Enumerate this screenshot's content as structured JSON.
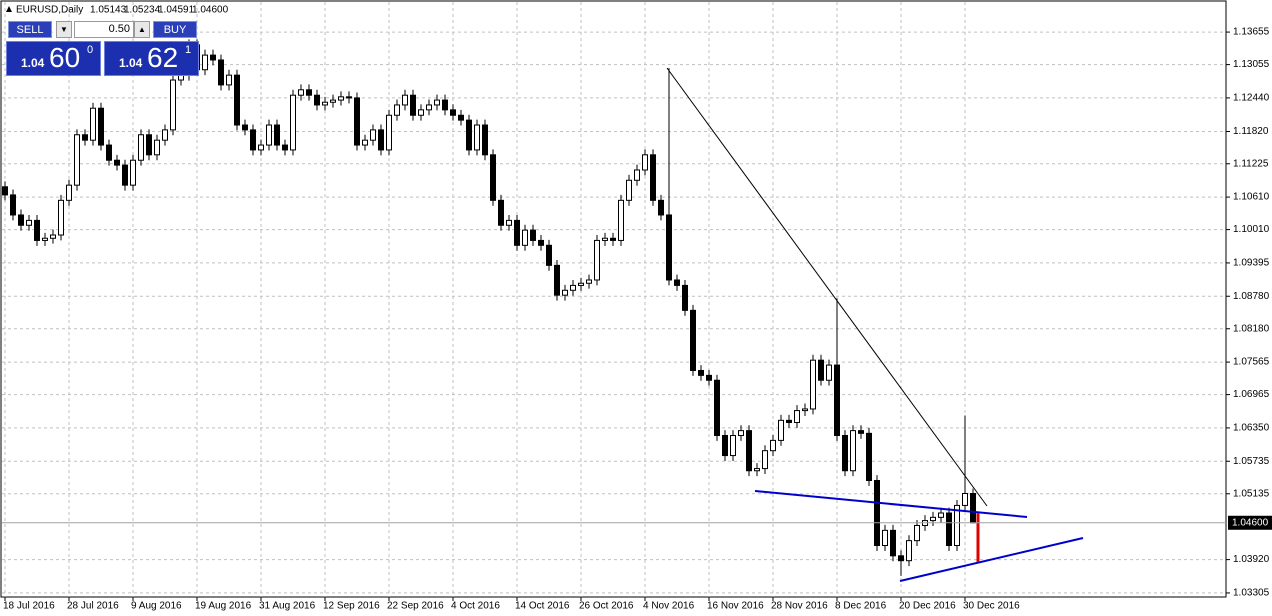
{
  "header": {
    "symbol": "EURUSD,Daily",
    "ohlc": [
      "1.05143",
      "1.05234",
      "1.04591",
      "1.04600"
    ]
  },
  "trade_panel": {
    "sell": "SELL",
    "buy": "BUY",
    "lot": "0.50",
    "bid": {
      "prefix": "1.04",
      "big": "60",
      "small": "0"
    },
    "ask": {
      "prefix": "1.04",
      "big": "62",
      "small": "1"
    }
  },
  "chart_data": {
    "type": "candlestick",
    "categories": [
      "18 Jul 2016",
      null,
      null,
      null,
      null,
      null,
      null,
      null,
      "28 Jul 2016",
      null,
      null,
      null,
      null,
      null,
      null,
      null,
      "9 Aug 2016",
      null,
      null,
      null,
      null,
      null,
      null,
      null,
      "19 Aug 2016",
      null,
      null,
      null,
      null,
      null,
      null,
      null,
      "31 Aug 2016",
      null,
      null,
      null,
      null,
      null,
      null,
      null,
      "12 Sep 2016",
      null,
      null,
      null,
      null,
      null,
      null,
      null,
      "22 Sep 2016",
      null,
      null,
      null,
      null,
      null,
      null,
      null,
      "4 Oct 2016",
      null,
      null,
      null,
      null,
      null,
      null,
      null,
      "14 Oct 2016",
      null,
      null,
      null,
      null,
      null,
      null,
      null,
      "26 Oct 2016",
      null,
      null,
      null,
      null,
      null,
      null,
      null,
      "4 Nov 2016",
      null,
      null,
      null,
      null,
      null,
      null,
      null,
      "16 Nov 2016",
      null,
      null,
      null,
      null,
      null,
      null,
      null,
      "28 Nov 2016",
      null,
      null,
      null,
      null,
      null,
      null,
      null,
      "8 Dec 2016",
      null,
      null,
      null,
      null,
      null,
      null,
      null,
      "20 Dec 2016",
      null,
      null,
      null,
      null,
      null,
      null,
      null,
      "30 Dec 2016",
      null
    ],
    "open": [
      1.108,
      1.1065,
      1.1028,
      1.1009,
      1.1018,
      1.0981,
      1.0985,
      1.0991,
      1.1055,
      1.1083,
      1.1176,
      1.1166,
      1.1225,
      1.1157,
      1.1129,
      1.112,
      1.1083,
      1.1129,
      1.1176,
      1.1139,
      1.1166,
      1.1185,
      1.1277,
      1.1286,
      1.1342,
      1.1296,
      1.1323,
      1.1314,
      1.1268,
      1.1286,
      1.1194,
      1.1185,
      1.1148,
      1.1157,
      1.1194,
      1.1157,
      1.1148,
      1.1249,
      1.1259,
      1.1249,
      1.1231,
      1.1236,
      1.124,
      1.1246,
      1.1244,
      1.1157,
      1.1166,
      1.1185,
      1.1148,
      1.1212,
      1.1231,
      1.1249,
      1.1212,
      1.1222,
      1.1231,
      1.124,
      1.1222,
      1.1212,
      1.1203,
      1.1148,
      1.1194,
      1.1139,
      1.1055,
      1.1009,
      1.1018,
      1.0972,
      1.1,
      1.0981,
      1.0972,
      1.0935,
      1.088,
      1.0889,
      1.0898,
      1.0902,
      1.0908,
      1.0981,
      1.0985,
      1.0981,
      1.1055,
      1.1092,
      1.1111,
      1.1139,
      1.1055,
      1.1028,
      1.0908,
      1.0898,
      1.0852,
      1.0741,
      1.0732,
      1.0723,
      1.0621,
      1.0584,
      1.0621,
      1.063,
      1.0556,
      1.056,
      1.0593,
      1.0612,
      1.0649,
      1.0645,
      1.0667,
      1.067,
      1.076,
      1.0723,
      1.0751,
      1.0621,
      1.0556,
      1.063,
      1.0625,
      1.0538,
      1.0418,
      1.0446,
      1.0399,
      1.039,
      1.0427,
      1.0455,
      1.0464,
      1.047,
      1.0478,
      1.0418,
      1.0492,
      1.0514
    ],
    "high": [
      1.109,
      1.1075,
      1.1038,
      1.1028,
      1.1028,
      1.0995,
      1.1001,
      1.1065,
      1.1093,
      1.1186,
      1.1186,
      1.1235,
      1.1235,
      1.1167,
      1.1139,
      1.113,
      1.1139,
      1.1186,
      1.1186,
      1.1176,
      1.1195,
      1.1287,
      1.1296,
      1.1352,
      1.1352,
      1.1333,
      1.1333,
      1.1324,
      1.1296,
      1.1296,
      1.1204,
      1.1195,
      1.1167,
      1.1204,
      1.1204,
      1.1167,
      1.1259,
      1.1269,
      1.1269,
      1.1259,
      1.1246,
      1.125,
      1.1256,
      1.1256,
      1.1254,
      1.1176,
      1.1195,
      1.1195,
      1.1222,
      1.1241,
      1.1259,
      1.1259,
      1.1232,
      1.1241,
      1.125,
      1.125,
      1.1232,
      1.1222,
      1.1213,
      1.1204,
      1.1204,
      1.1149,
      1.1065,
      1.1028,
      1.1028,
      1.101,
      1.101,
      1.0991,
      1.0982,
      1.0945,
      1.0899,
      1.0908,
      1.0912,
      1.0918,
      1.0991,
      1.0995,
      1.0995,
      1.1065,
      1.1102,
      1.1121,
      1.1149,
      1.1149,
      1.1065,
      1.1299,
      1.0918,
      1.0908,
      1.0862,
      1.0751,
      1.0742,
      1.0733,
      1.0631,
      1.0631,
      1.064,
      1.064,
      1.057,
      1.0603,
      1.0622,
      1.0659,
      1.0659,
      1.0677,
      1.068,
      1.077,
      1.077,
      1.0761,
      1.0874,
      1.0631,
      1.064,
      1.064,
      1.0635,
      1.0548,
      1.0456,
      1.0456,
      1.0409,
      1.0437,
      1.0465,
      1.0474,
      1.048,
      1.0488,
      1.0488,
      1.0502,
      1.0658,
      1.0523
    ],
    "low": [
      1.1055,
      1.1018,
      1.0999,
      1.0999,
      1.0971,
      1.0971,
      1.0975,
      1.0981,
      1.1045,
      1.1073,
      1.1156,
      1.1156,
      1.1147,
      1.1119,
      1.111,
      1.1073,
      1.1073,
      1.1119,
      1.1129,
      1.1129,
      1.1156,
      1.1175,
      1.1267,
      1.1276,
      1.1286,
      1.1286,
      1.1304,
      1.1258,
      1.1258,
      1.1184,
      1.1175,
      1.1138,
      1.1138,
      1.1147,
      1.1147,
      1.1138,
      1.1138,
      1.1239,
      1.1239,
      1.1221,
      1.1221,
      1.1226,
      1.123,
      1.1234,
      1.1147,
      1.1147,
      1.1156,
      1.1138,
      1.1138,
      1.1202,
      1.1221,
      1.1202,
      1.1202,
      1.1212,
      1.1221,
      1.1212,
      1.1202,
      1.1193,
      1.1138,
      1.1138,
      1.1129,
      1.1045,
      1.0999,
      1.0999,
      1.0962,
      1.0962,
      1.0971,
      1.0962,
      1.0925,
      1.087,
      1.087,
      1.0879,
      1.0888,
      1.0892,
      1.0898,
      1.0971,
      1.0971,
      1.0971,
      1.1045,
      1.1082,
      1.1101,
      1.1045,
      1.1018,
      1.0898,
      1.0888,
      1.0842,
      1.0731,
      1.0722,
      1.0713,
      1.0611,
      1.0574,
      1.0574,
      1.0611,
      1.0546,
      1.0546,
      1.055,
      1.0583,
      1.0602,
      1.0635,
      1.0635,
      1.0657,
      1.066,
      1.0713,
      1.0713,
      1.0611,
      1.0546,
      1.0546,
      1.0615,
      1.0528,
      1.0408,
      1.0408,
      1.0389,
      1.0362,
      1.038,
      1.0417,
      1.0445,
      1.0454,
      1.046,
      1.0408,
      1.0408,
      1.0482,
      1.0459
    ],
    "close": [
      1.1065,
      1.1028,
      1.1009,
      1.1018,
      1.0981,
      1.0985,
      1.0991,
      1.1055,
      1.1083,
      1.1176,
      1.1166,
      1.1225,
      1.1157,
      1.1129,
      1.112,
      1.1083,
      1.1129,
      1.1176,
      1.1139,
      1.1166,
      1.1185,
      1.1277,
      1.1286,
      1.1342,
      1.1296,
      1.1323,
      1.1314,
      1.1268,
      1.1286,
      1.1194,
      1.1185,
      1.1148,
      1.1157,
      1.1194,
      1.1157,
      1.1148,
      1.1249,
      1.1259,
      1.1249,
      1.1231,
      1.1236,
      1.124,
      1.1246,
      1.1244,
      1.1157,
      1.1166,
      1.1185,
      1.1148,
      1.1212,
      1.1231,
      1.1249,
      1.1212,
      1.1222,
      1.1231,
      1.124,
      1.1222,
      1.1212,
      1.1203,
      1.1148,
      1.1194,
      1.1139,
      1.1055,
      1.1009,
      1.1018,
      1.0972,
      1.1,
      1.0981,
      1.0972,
      1.0935,
      1.088,
      1.0889,
      1.0898,
      1.0902,
      1.0908,
      1.0981,
      1.0985,
      1.0981,
      1.1055,
      1.1092,
      1.1111,
      1.1139,
      1.1055,
      1.1028,
      1.0908,
      1.0898,
      1.0852,
      1.0741,
      1.0732,
      1.0723,
      1.0621,
      1.0584,
      1.0621,
      1.063,
      1.0556,
      1.056,
      1.0593,
      1.0612,
      1.0649,
      1.0645,
      1.0667,
      1.067,
      1.076,
      1.0723,
      1.0751,
      1.0621,
      1.0556,
      1.063,
      1.0625,
      1.0538,
      1.0418,
      1.0446,
      1.0399,
      1.039,
      1.0427,
      1.0455,
      1.0464,
      1.047,
      1.0478,
      1.0418,
      1.0492,
      1.0514,
      1.046
    ],
    "ylim": [
      1.0323,
      1.1421
    ],
    "yticks": [
      {
        "value": 1.13655,
        "label": "1.13655"
      },
      {
        "value": 1.13055,
        "label": "1.13055"
      },
      {
        "value": 1.1244,
        "label": "1.12440"
      },
      {
        "value": 1.1182,
        "label": "1.11820"
      },
      {
        "value": 1.11225,
        "label": "1.11225"
      },
      {
        "value": 1.1061,
        "label": "1.10610"
      },
      {
        "value": 1.1001,
        "label": "1.10010"
      },
      {
        "value": 1.09395,
        "label": "1.09395"
      },
      {
        "value": 1.0878,
        "label": "1.08780"
      },
      {
        "value": 1.0818,
        "label": "1.08180"
      },
      {
        "value": 1.07565,
        "label": "1.07565"
      },
      {
        "value": 1.06965,
        "label": "1.06965"
      },
      {
        "value": 1.0635,
        "label": "1.06350"
      },
      {
        "value": 1.05735,
        "label": "1.05735"
      },
      {
        "value": 1.05135,
        "label": "1.05135"
      },
      {
        "value": 1.0392,
        "label": "1.03920"
      },
      {
        "value": 1.03305,
        "label": "1.03305"
      }
    ],
    "grid": true,
    "up_color": "#ffffff",
    "down_color": "#000000",
    "current_price": {
      "value": 1.046,
      "label": "1.04600"
    }
  }
}
